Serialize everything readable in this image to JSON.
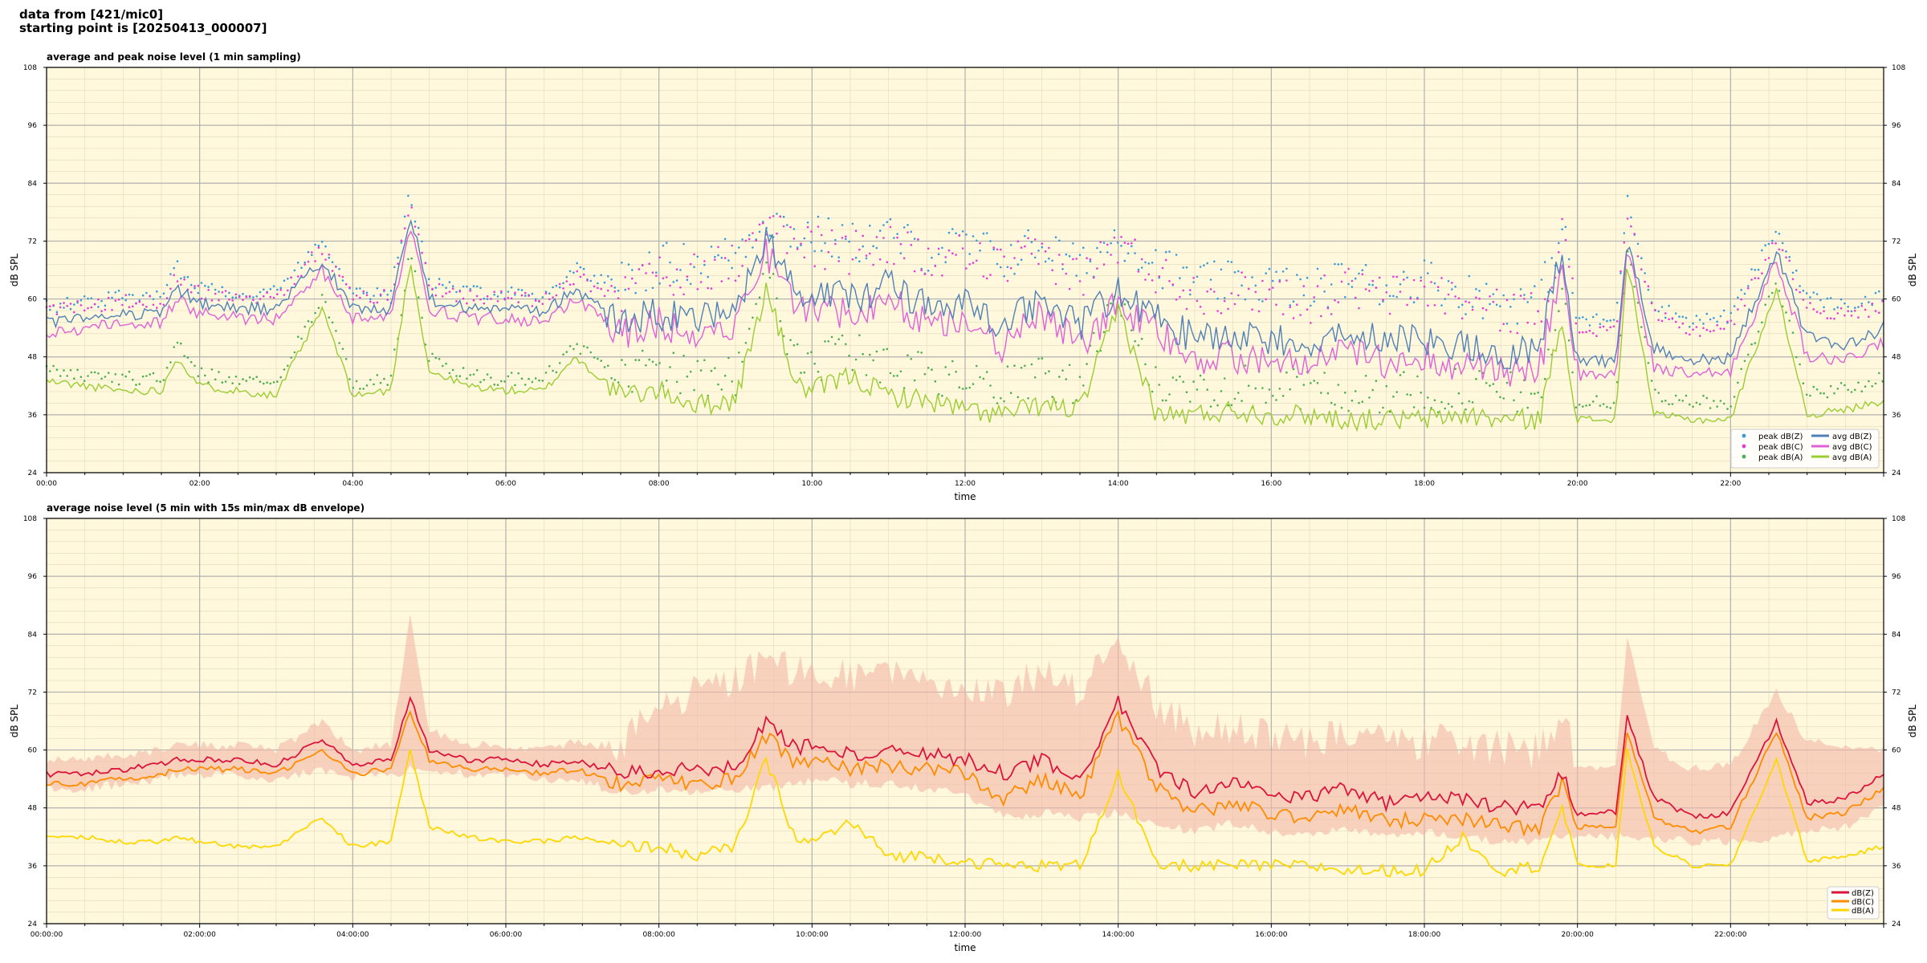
{
  "header": {
    "line1": "data from [421/mic0]",
    "line2": "starting point is [20250413_000007]"
  },
  "colors": {
    "plot_bg": "#fff8dc",
    "grid_major": "#b0b0b0",
    "grid_minor": "#e2d8b8",
    "avg_z": "#4f81b8",
    "avg_c": "#e060d8",
    "avg_a": "#9acd32",
    "peak_z": "#3a9ad9",
    "peak_c": "#e63bd8",
    "peak_a": "#4caf50",
    "z": "#dc143c",
    "c": "#ff8c00",
    "a": "#ffd700",
    "envelope": "#f4b8a8"
  },
  "chart_data": [
    {
      "type": "line",
      "title": "average and peak noise level (1 min sampling)",
      "xlabel": "time",
      "ylabel": "dB SPL",
      "xlim": [
        0,
        24
      ],
      "ylim": [
        24,
        108
      ],
      "yticks": [
        24,
        36,
        48,
        60,
        72,
        84,
        96,
        108
      ],
      "xticks": [
        "00:00",
        "02:00",
        "04:00",
        "06:00",
        "08:00",
        "10:00",
        "12:00",
        "14:00",
        "16:00",
        "18:00",
        "20:00",
        "22:00"
      ],
      "grid": true,
      "legend_position": "lower-right",
      "legend": [
        "peak dB(Z)",
        "peak dB(C)",
        "peak dB(A)",
        "avg dB(Z)",
        "avg dB(C)",
        "avg dB(A)"
      ],
      "x_hours": [
        0,
        0.5,
        1,
        1.5,
        1.7,
        2,
        2.5,
        3,
        3.6,
        4,
        4.5,
        4.75,
        5,
        5.5,
        6,
        6.5,
        6.9,
        7.5,
        8,
        8.5,
        9,
        9.4,
        9.8,
        10,
        10.5,
        11,
        11.5,
        12,
        12.5,
        13,
        13.5,
        14,
        14.5,
        15,
        15.5,
        16,
        16.5,
        17,
        17.5,
        18,
        18.5,
        19,
        19.5,
        19.8,
        20,
        20.5,
        20.65,
        21,
        21.5,
        22,
        22.6,
        23,
        23.5,
        24
      ],
      "series": [
        {
          "name": "avg dB(Z)",
          "style": "line",
          "values": [
            55,
            56,
            57,
            57,
            62,
            59,
            58,
            58,
            68,
            58,
            58,
            78,
            60,
            58,
            58,
            57,
            62,
            55,
            57,
            56,
            58,
            72,
            62,
            62,
            60,
            63,
            58,
            59,
            55,
            60,
            54,
            62,
            56,
            52,
            52,
            52,
            50,
            53,
            51,
            52,
            50,
            49,
            49,
            70,
            47,
            47,
            73,
            50,
            47,
            48,
            70,
            52,
            50,
            54
          ]
        },
        {
          "name": "avg dB(C)",
          "style": "line",
          "values": [
            53,
            54,
            55,
            55,
            60,
            57,
            56,
            56,
            66,
            56,
            56,
            76,
            58,
            56,
            56,
            55,
            60,
            53,
            55,
            53,
            55,
            70,
            58,
            58,
            57,
            60,
            55,
            56,
            50,
            57,
            50,
            59,
            53,
            48,
            48,
            47,
            46,
            49,
            47,
            48,
            46,
            45,
            45,
            68,
            44,
            44,
            71,
            46,
            44,
            45,
            68,
            48,
            47,
            51
          ]
        },
        {
          "name": "avg dB(A)",
          "style": "line",
          "values": [
            43,
            42,
            41,
            41,
            48,
            42,
            41,
            40,
            58,
            40,
            41,
            68,
            45,
            42,
            41,
            41,
            48,
            40,
            41,
            38,
            39,
            62,
            42,
            41,
            44,
            40,
            39,
            37,
            36,
            38,
            37,
            58,
            36,
            36,
            37,
            36,
            36,
            35,
            35,
            35,
            36,
            35,
            35,
            56,
            35,
            35,
            68,
            36,
            35,
            35,
            62,
            36,
            37,
            39
          ]
        },
        {
          "name": "peak dB(Z)",
          "style": "dots",
          "values": [
            58,
            59,
            60,
            60,
            66,
            62,
            61,
            61,
            72,
            61,
            61,
            82,
            63,
            61,
            61,
            60,
            66,
            62,
            66,
            66,
            68,
            76,
            72,
            72,
            70,
            72,
            68,
            70,
            67,
            70,
            65,
            72,
            66,
            62,
            62,
            62,
            60,
            63,
            61,
            63,
            60,
            58,
            58,
            74,
            55,
            55,
            80,
            58,
            55,
            56,
            74,
            60,
            58,
            60
          ]
        },
        {
          "name": "peak dB(C)",
          "style": "dots",
          "values": [
            57,
            58,
            59,
            59,
            64,
            61,
            60,
            60,
            70,
            60,
            60,
            80,
            62,
            60,
            60,
            59,
            64,
            60,
            64,
            64,
            66,
            74,
            70,
            70,
            68,
            70,
            66,
            68,
            65,
            68,
            63,
            70,
            64,
            60,
            60,
            60,
            58,
            61,
            59,
            61,
            58,
            56,
            56,
            72,
            53,
            53,
            78,
            56,
            53,
            54,
            72,
            58,
            56,
            58
          ]
        },
        {
          "name": "peak dB(A)",
          "style": "dots",
          "values": [
            45,
            44,
            43,
            43,
            50,
            44,
            43,
            42,
            60,
            42,
            43,
            70,
            47,
            44,
            43,
            43,
            50,
            43,
            45,
            42,
            43,
            64,
            46,
            45,
            48,
            44,
            43,
            41,
            40,
            42,
            41,
            60,
            40,
            40,
            41,
            40,
            40,
            39,
            39,
            39,
            40,
            39,
            39,
            58,
            38,
            38,
            70,
            40,
            38,
            38,
            64,
            40,
            41,
            43
          ]
        }
      ]
    },
    {
      "type": "line",
      "title": "average noise level (5 min with 15s min/max dB envelope)",
      "xlabel": "time",
      "ylabel": "dB SPL",
      "xlim": [
        0,
        24
      ],
      "ylim": [
        24,
        108
      ],
      "yticks": [
        24,
        36,
        48,
        60,
        72,
        84,
        96,
        108
      ],
      "xticks": [
        "00:00:00",
        "02:00:00",
        "04:00:00",
        "06:00:00",
        "08:00:00",
        "10:00:00",
        "12:00:00",
        "14:00:00",
        "16:00:00",
        "18:00:00",
        "20:00:00",
        "22:00:00"
      ],
      "grid": true,
      "legend_position": "lower-right",
      "legend": [
        "dB(Z)",
        "dB(C)",
        "dB(A)"
      ],
      "x_hours": [
        0,
        0.5,
        1,
        1.5,
        1.7,
        2,
        2.5,
        3,
        3.6,
        4,
        4.5,
        4.75,
        5,
        5.5,
        6,
        6.5,
        6.9,
        7.5,
        8,
        8.5,
        9,
        9.4,
        9.8,
        10,
        10.5,
        11,
        11.5,
        12,
        12.5,
        13,
        13.5,
        14,
        14.5,
        15,
        15.5,
        16,
        16.5,
        17,
        17.5,
        18,
        18.5,
        19,
        19.5,
        19.8,
        20,
        20.5,
        20.65,
        21,
        21.5,
        22,
        22.6,
        23,
        23.5,
        24
      ],
      "series": [
        {
          "name": "dB(Z)",
          "values": [
            55,
            55,
            56,
            57,
            58,
            58,
            58,
            57,
            62,
            57,
            58,
            71,
            60,
            58,
            58,
            57,
            58,
            55,
            56,
            56,
            57,
            66,
            60,
            61,
            59,
            60,
            59,
            58,
            55,
            58,
            53,
            70,
            56,
            51,
            53,
            51,
            50,
            52,
            49,
            50,
            50,
            48,
            48,
            55,
            47,
            47,
            67,
            50,
            46,
            47,
            66,
            49,
            50,
            55
          ]
        },
        {
          "name": "dB(C)",
          "values": [
            53,
            53,
            54,
            55,
            56,
            56,
            56,
            55,
            60,
            55,
            56,
            68,
            58,
            56,
            56,
            55,
            56,
            53,
            54,
            53,
            54,
            63,
            57,
            58,
            56,
            57,
            56,
            55,
            50,
            54,
            50,
            67,
            52,
            47,
            49,
            47,
            46,
            48,
            45,
            46,
            46,
            44,
            44,
            53,
            44,
            44,
            64,
            46,
            43,
            44,
            64,
            46,
            47,
            52
          ]
        },
        {
          "name": "dB(A)",
          "values": [
            42,
            42,
            41,
            41,
            42,
            41,
            40,
            40,
            46,
            40,
            41,
            60,
            44,
            42,
            41,
            41,
            42,
            40,
            40,
            38,
            40,
            58,
            41,
            41,
            45,
            38,
            38,
            37,
            36,
            36,
            36,
            55,
            36,
            36,
            36,
            36,
            36,
            35,
            35,
            35,
            42,
            35,
            36,
            48,
            36,
            36,
            60,
            40,
            36,
            36,
            58,
            37,
            38,
            40
          ]
        },
        {
          "name": "envelope max",
          "values": [
            58,
            58,
            59,
            60,
            62,
            61,
            61,
            60,
            66,
            60,
            61,
            88,
            64,
            61,
            61,
            60,
            62,
            60,
            70,
            72,
            74,
            80,
            76,
            76,
            75,
            78,
            74,
            74,
            72,
            76,
            71,
            84,
            70,
            64,
            64,
            63,
            62,
            64,
            61,
            62,
            62,
            60,
            60,
            68,
            56,
            56,
            84,
            60,
            56,
            57,
            72,
            62,
            61,
            60
          ]
        },
        {
          "name": "envelope min",
          "values": [
            52,
            52,
            53,
            54,
            55,
            55,
            55,
            54,
            56,
            54,
            55,
            56,
            56,
            55,
            55,
            54,
            54,
            51,
            52,
            51,
            52,
            52,
            53,
            54,
            53,
            53,
            52,
            51,
            46,
            47,
            46,
            47,
            45,
            43,
            45,
            43,
            42,
            44,
            42,
            43,
            42,
            41,
            41,
            42,
            42,
            42,
            42,
            42,
            41,
            41,
            42,
            43,
            44,
            48
          ]
        }
      ]
    }
  ]
}
